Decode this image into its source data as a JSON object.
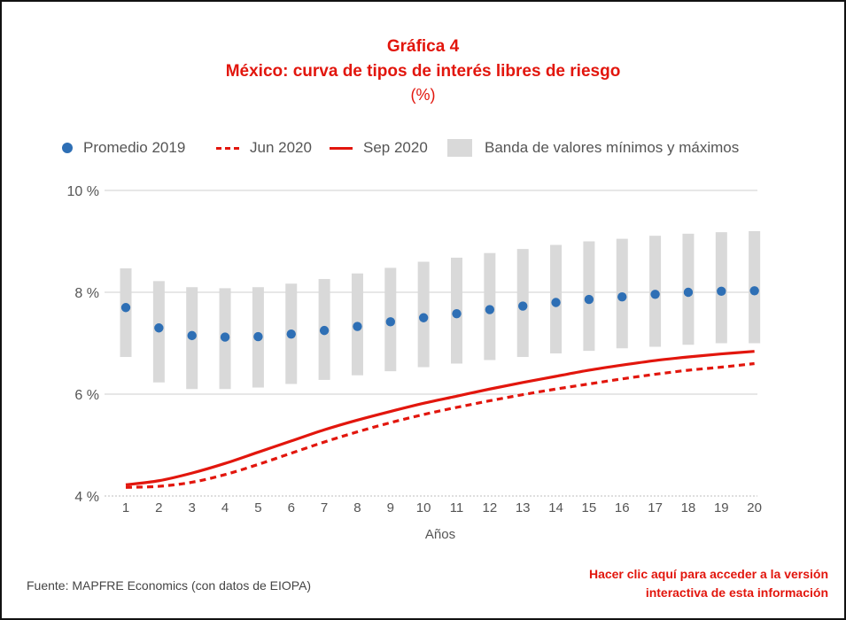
{
  "title": {
    "line1": "Gráfica 4",
    "line2": "México: curva de tipos de interés libres de riesgo",
    "line3": "(%)"
  },
  "legend": {
    "promedio": "Promedio 2019",
    "jun": "Jun 2020",
    "sep": "Sep 2020",
    "band": "Banda de valores mínimos y máximos"
  },
  "colors": {
    "accent_red": "#e2160d",
    "dot_blue": "#2e6fb5",
    "band_gray": "#d9d9d9",
    "grid": "#cfcfcf"
  },
  "footer": {
    "source": "Fuente: MAPFRE Economics (con datos de EIOPA)",
    "link_line1": "Hacer clic aquí para acceder a la versión",
    "link_line2": "interactiva de esta información"
  },
  "chart_data": {
    "type": "line",
    "xlabel": "Años",
    "ylabel": "",
    "x": [
      1,
      2,
      3,
      4,
      5,
      6,
      7,
      8,
      9,
      10,
      11,
      12,
      13,
      14,
      15,
      16,
      17,
      18,
      19,
      20
    ],
    "ylim": [
      4,
      10
    ],
    "yticks": [
      4,
      6,
      8,
      10
    ],
    "ytick_labels": [
      "4 %",
      "6 %",
      "8 %",
      "10 %"
    ],
    "grid": true,
    "legend_position": "top",
    "series": [
      {
        "name": "Promedio 2019",
        "style": "dots",
        "values": [
          7.7,
          7.3,
          7.15,
          7.12,
          7.13,
          7.18,
          7.25,
          7.33,
          7.42,
          7.5,
          7.58,
          7.66,
          7.73,
          7.8,
          7.86,
          7.91,
          7.96,
          8.0,
          8.02,
          8.03
        ]
      },
      {
        "name": "Jun 2020",
        "style": "dashed",
        "values": [
          4.17,
          4.19,
          4.27,
          4.42,
          4.62,
          4.84,
          5.06,
          5.26,
          5.44,
          5.6,
          5.74,
          5.87,
          5.99,
          6.1,
          6.2,
          6.3,
          6.39,
          6.47,
          6.53,
          6.6
        ]
      },
      {
        "name": "Sep 2020",
        "style": "solid",
        "values": [
          4.22,
          4.3,
          4.45,
          4.64,
          4.86,
          5.08,
          5.3,
          5.49,
          5.66,
          5.82,
          5.96,
          6.1,
          6.23,
          6.35,
          6.47,
          6.57,
          6.66,
          6.73,
          6.79,
          6.84
        ]
      },
      {
        "name": "Banda de valores mínimos y máximos",
        "style": "band",
        "min": [
          6.73,
          6.23,
          6.1,
          6.1,
          6.13,
          6.2,
          6.28,
          6.37,
          6.45,
          6.53,
          6.6,
          6.67,
          6.73,
          6.8,
          6.85,
          6.9,
          6.93,
          6.97,
          7.0,
          7.0
        ],
        "max": [
          8.47,
          8.22,
          8.1,
          8.08,
          8.1,
          8.17,
          8.26,
          8.37,
          8.48,
          8.6,
          8.68,
          8.77,
          8.85,
          8.93,
          9.0,
          9.05,
          9.11,
          9.15,
          9.18,
          9.2
        ]
      }
    ]
  }
}
